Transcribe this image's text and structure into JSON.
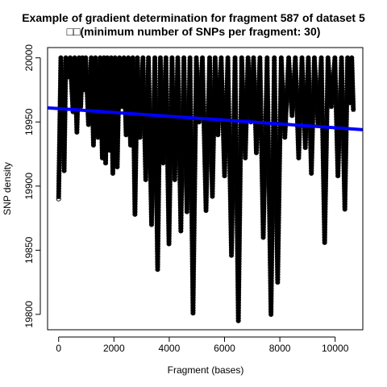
{
  "chart_data": {
    "type": "line",
    "title_line1": "Example of gradient determination for fragment 587 of dataset 5",
    "title_line2": "□□(minimum number of SNPs per fragment: 30)",
    "xlabel": "Fragment (bases)",
    "ylabel": "SNP density",
    "xlim": [
      -400,
      11000
    ],
    "ylim": [
      19788,
      20008
    ],
    "x_ticks": [
      0,
      2000,
      4000,
      6000,
      8000,
      10000
    ],
    "y_ticks": [
      19800,
      19850,
      19900,
      19950,
      20000
    ],
    "marker": "open-circle",
    "series": [
      {
        "color": "#000000",
        "x": [
          0,
          80,
          200,
          260,
          330,
          420,
          520,
          580,
          660,
          740,
          800,
          860,
          920,
          980,
          1080,
          1180,
          1260,
          1330,
          1420,
          1500,
          1580,
          1640,
          1700,
          1760,
          1840,
          1900,
          1960,
          2040,
          2120,
          2200,
          2280,
          2360,
          2440,
          2520,
          2600,
          2680,
          2760,
          2850,
          2940,
          3050,
          3150,
          3250,
          3360,
          3480,
          3580,
          3680,
          3780,
          3880,
          3990,
          4100,
          4200,
          4310,
          4420,
          4530,
          4640,
          4750,
          4860,
          4980,
          5080,
          5200,
          5330,
          5460,
          5560,
          5660,
          5760,
          5880,
          6000,
          6120,
          6250,
          6380,
          6500,
          6620,
          6750,
          6850,
          6950,
          7050,
          7150,
          7280,
          7400,
          7540,
          7680,
          7800,
          7920,
          8050,
          8180,
          8320,
          8440,
          8560,
          8680,
          8800,
          8920,
          9030,
          9140,
          9250,
          9380,
          9500,
          9620,
          9740,
          9860,
          9990,
          10100,
          10230,
          10350,
          10450,
          10530,
          10600,
          10660
        ],
        "y": [
          19890,
          20000,
          19912,
          20000,
          19985,
          20000,
          19958,
          20000,
          19942,
          20000,
          19962,
          20000,
          19975,
          20000,
          19948,
          20000,
          19932,
          20000,
          19938,
          20000,
          19922,
          20000,
          19918,
          20000,
          19928,
          20000,
          19910,
          20000,
          19915,
          20000,
          19962,
          20000,
          19940,
          20000,
          19932,
          20000,
          19878,
          20000,
          19938,
          20000,
          19905,
          20000,
          19870,
          20000,
          19835,
          20000,
          19918,
          20000,
          19855,
          20000,
          19905,
          20000,
          19865,
          20000,
          19880,
          20000,
          19801,
          20000,
          19950,
          20000,
          19881,
          20000,
          19892,
          20000,
          19940,
          20000,
          19908,
          20000,
          19846,
          20000,
          19795,
          20000,
          19922,
          20000,
          19950,
          20000,
          19926,
          20000,
          19860,
          20000,
          19800,
          20000,
          19825,
          20000,
          19938,
          20000,
          19955,
          20000,
          19922,
          20000,
          19930,
          20000,
          19910,
          20000,
          19948,
          20000,
          19856,
          20000,
          19962,
          20000,
          19908,
          20000,
          19882,
          20000,
          19965,
          20000,
          19958
        ]
      }
    ],
    "trend_line": {
      "color": "#0000ff",
      "x": [
        -400,
        11000
      ],
      "y": [
        19961,
        19944
      ]
    }
  }
}
